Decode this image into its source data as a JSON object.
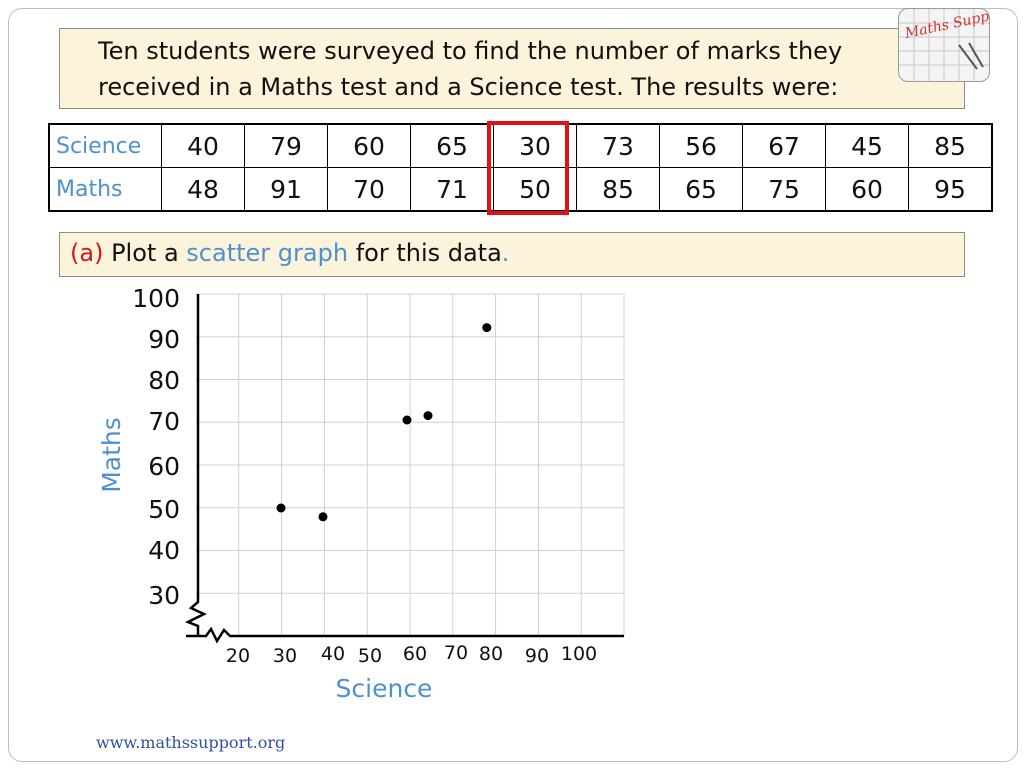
{
  "intro": {
    "line1": "Ten students were surveyed to find the number of marks they",
    "line2": "received in a Maths test and a Science test. The results were:"
  },
  "table": {
    "row_labels": [
      "Science",
      "Maths"
    ],
    "science": [
      "40",
      "79",
      "60",
      "65",
      "30",
      "73",
      "56",
      "67",
      "45",
      "85"
    ],
    "maths": [
      "48",
      "91",
      "70",
      "71",
      "50",
      "85",
      "65",
      "75",
      "60",
      "95"
    ],
    "highlight_color": "#e3101a"
  },
  "question": {
    "part": "(a)",
    "prefix": "Plot a",
    "term": "scatter graph",
    "suffix": "for this data",
    "dot": "."
  },
  "logo": {
    "text": "Maths Support",
    "color": "#d32f2f"
  },
  "footer": "www.mathssupport.org",
  "colors": {
    "label_blue": "#4f90cf",
    "part_red": "#d01818"
  },
  "chart_data": {
    "type": "scatter",
    "xlabel": "Science",
    "ylabel": "Maths",
    "x_ticks": [
      "20",
      "30",
      "40",
      "50",
      "60",
      "70",
      "80",
      "90",
      "100"
    ],
    "y_ticks": [
      "100",
      "90",
      "80",
      "70",
      "60",
      "50",
      "40",
      "30"
    ],
    "axis_breaks": true,
    "grid": true,
    "points": [
      {
        "x": 40,
        "y": 48
      },
      {
        "x": 79,
        "y": 91
      },
      {
        "x": 60,
        "y": 70
      },
      {
        "x": 65,
        "y": 71
      },
      {
        "x": 30,
        "y": 50
      }
    ]
  }
}
